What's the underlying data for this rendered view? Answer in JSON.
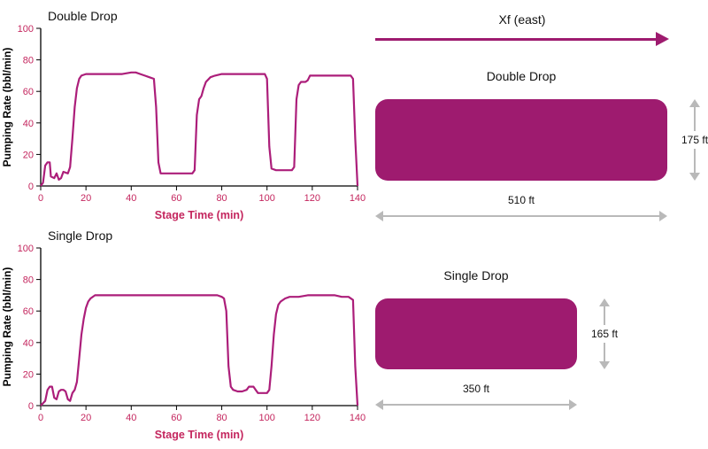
{
  "colors": {
    "brand": "#9E1B6F",
    "line": "#AC1E7A",
    "tick": "#C4265E",
    "axis": "#000000",
    "dim_gray": "#B9B9B9"
  },
  "diagram": {
    "direction_label": "Xf (east)",
    "blocks": [
      {
        "title": "Double Drop",
        "height": "175 ft",
        "width": "510 ft"
      },
      {
        "title": "Single Drop",
        "height": "165 ft",
        "width": "350 ft"
      }
    ]
  },
  "chart_data": [
    {
      "name": "double-drop",
      "type": "line",
      "title": "Double Drop",
      "xlabel": "Stage Time (min)",
      "ylabel": "Pumping Rate (bbl/min)",
      "xlim": [
        0,
        140
      ],
      "ylim": [
        0,
        100
      ],
      "xticks": [
        0,
        20,
        40,
        60,
        80,
        100,
        120,
        140
      ],
      "yticks": [
        0,
        20,
        40,
        60,
        80,
        100
      ],
      "grid": false,
      "legend": false,
      "series": [
        {
          "name": "pumping_rate",
          "points": [
            [
              0,
              0
            ],
            [
              1,
              2
            ],
            [
              2,
              13
            ],
            [
              3,
              15
            ],
            [
              4,
              15
            ],
            [
              4.5,
              6
            ],
            [
              6,
              5
            ],
            [
              7,
              8
            ],
            [
              8,
              4
            ],
            [
              9,
              5
            ],
            [
              10,
              9
            ],
            [
              12,
              8
            ],
            [
              13,
              12
            ],
            [
              14,
              30
            ],
            [
              15,
              50
            ],
            [
              16,
              62
            ],
            [
              17,
              68
            ],
            [
              18,
              70
            ],
            [
              20,
              71
            ],
            [
              24,
              71
            ],
            [
              28,
              71
            ],
            [
              32,
              71
            ],
            [
              36,
              71
            ],
            [
              40,
              72
            ],
            [
              42,
              72
            ],
            [
              44,
              71
            ],
            [
              46,
              70
            ],
            [
              48,
              69
            ],
            [
              50,
              68
            ],
            [
              51,
              50
            ],
            [
              52,
              15
            ],
            [
              53,
              8
            ],
            [
              56,
              8
            ],
            [
              60,
              8
            ],
            [
              64,
              8
            ],
            [
              67,
              8
            ],
            [
              68,
              10
            ],
            [
              69,
              45
            ],
            [
              70,
              55
            ],
            [
              71,
              57
            ],
            [
              72,
              62
            ],
            [
              73,
              66
            ],
            [
              75,
              69
            ],
            [
              77,
              70
            ],
            [
              80,
              71
            ],
            [
              85,
              71
            ],
            [
              90,
              71
            ],
            [
              95,
              71
            ],
            [
              99,
              71
            ],
            [
              100,
              68
            ],
            [
              101,
              25
            ],
            [
              102,
              11
            ],
            [
              104,
              10
            ],
            [
              108,
              10
            ],
            [
              111,
              10
            ],
            [
              112,
              12
            ],
            [
              113,
              55
            ],
            [
              114,
              64
            ],
            [
              115,
              66
            ],
            [
              117,
              66
            ],
            [
              118,
              67
            ],
            [
              119,
              70
            ],
            [
              121,
              70
            ],
            [
              125,
              70
            ],
            [
              130,
              70
            ],
            [
              134,
              70
            ],
            [
              137,
              70
            ],
            [
              138,
              68
            ],
            [
              139,
              30
            ],
            [
              140,
              0
            ]
          ]
        }
      ]
    },
    {
      "name": "single-drop",
      "type": "line",
      "title": "Single Drop",
      "xlabel": "Stage Time (min)",
      "ylabel": "Pumping Rate (bbl/min)",
      "xlim": [
        0,
        140
      ],
      "ylim": [
        0,
        100
      ],
      "xticks": [
        0,
        20,
        40,
        60,
        80,
        100,
        120,
        140
      ],
      "yticks": [
        0,
        20,
        40,
        60,
        80,
        100
      ],
      "grid": false,
      "legend": false,
      "series": [
        {
          "name": "pumping_rate",
          "points": [
            [
              0,
              0
            ],
            [
              2,
              3
            ],
            [
              3,
              10
            ],
            [
              4,
              12
            ],
            [
              5,
              12
            ],
            [
              6,
              5
            ],
            [
              7,
              4
            ],
            [
              8,
              9
            ],
            [
              9,
              10
            ],
            [
              10,
              10
            ],
            [
              11,
              9
            ],
            [
              12,
              4
            ],
            [
              13,
              3
            ],
            [
              14,
              8
            ],
            [
              15,
              10
            ],
            [
              16,
              15
            ],
            [
              17,
              30
            ],
            [
              18,
              45
            ],
            [
              19,
              55
            ],
            [
              20,
              62
            ],
            [
              21,
              66
            ],
            [
              22,
              68
            ],
            [
              24,
              70
            ],
            [
              28,
              70
            ],
            [
              34,
              70
            ],
            [
              40,
              70
            ],
            [
              46,
              70
            ],
            [
              52,
              70
            ],
            [
              58,
              70
            ],
            [
              64,
              70
            ],
            [
              70,
              70
            ],
            [
              74,
              70
            ],
            [
              78,
              70
            ],
            [
              80,
              69
            ],
            [
              81,
              68
            ],
            [
              82,
              60
            ],
            [
              83,
              25
            ],
            [
              84,
              12
            ],
            [
              85,
              10
            ],
            [
              87,
              9
            ],
            [
              89,
              9
            ],
            [
              91,
              10
            ],
            [
              92,
              12
            ],
            [
              93,
              12
            ],
            [
              94,
              12
            ],
            [
              95,
              10
            ],
            [
              96,
              8
            ],
            [
              98,
              8
            ],
            [
              100,
              8
            ],
            [
              101,
              10
            ],
            [
              102,
              25
            ],
            [
              103,
              45
            ],
            [
              104,
              58
            ],
            [
              105,
              64
            ],
            [
              106,
              66
            ],
            [
              108,
              68
            ],
            [
              110,
              69
            ],
            [
              114,
              69
            ],
            [
              118,
              70
            ],
            [
              122,
              70
            ],
            [
              126,
              70
            ],
            [
              130,
              70
            ],
            [
              133,
              69
            ],
            [
              136,
              69
            ],
            [
              138,
              67
            ],
            [
              139,
              25
            ],
            [
              140,
              0
            ]
          ]
        }
      ]
    }
  ]
}
